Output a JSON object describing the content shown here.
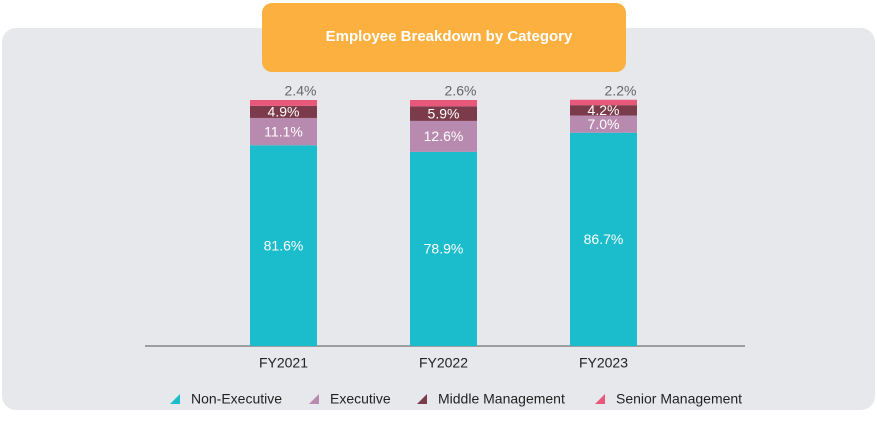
{
  "chart_data": {
    "type": "stacked_bar",
    "title": "Employee Breakdown by Category",
    "categories": [
      "FY2021",
      "FY2022",
      "FY2023"
    ],
    "series": [
      {
        "name": "Non-Executive",
        "color": "#1bbccc",
        "values": [
          81.6,
          78.9,
          86.7
        ],
        "value_labels": [
          "81.6%",
          "78.9%",
          "86.7%"
        ]
      },
      {
        "name": "Executive",
        "color": "#b98aaf",
        "values": [
          11.1,
          12.6,
          7.0
        ],
        "value_labels": [
          "11.1%",
          "12.6%",
          "7.0%"
        ]
      },
      {
        "name": "Middle Management",
        "color": "#7b3b4b",
        "values": [
          4.9,
          5.9,
          4.2
        ],
        "value_labels": [
          "4.9%",
          "5.9%",
          "4.2%"
        ]
      },
      {
        "name": "Senior Management",
        "color": "#e8587a",
        "values": [
          2.4,
          2.6,
          2.2
        ],
        "value_labels": [
          "2.4%",
          "2.6%",
          "2.2%"
        ]
      }
    ],
    "legend": "bottom"
  }
}
